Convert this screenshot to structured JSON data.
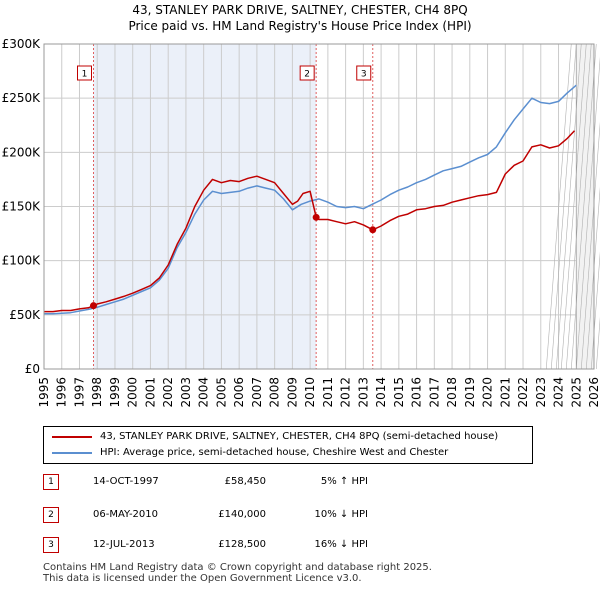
{
  "title_line1": "43, STANLEY PARK DRIVE, SALTNEY, CHESTER, CH4 8PQ",
  "title_line2": "Price paid vs. HM Land Registry's House Price Index (HPI)",
  "legend": {
    "property_label": "43, STANLEY PARK DRIVE, SALTNEY, CHESTER, CH4 8PQ (semi-detached house)",
    "hpi_label": "HPI: Average price, semi-detached house, Cheshire West and Chester"
  },
  "sales": [
    {
      "num": "1",
      "date": "14-OCT-1997",
      "price": "£58,450",
      "hpi": "5% ↑ HPI"
    },
    {
      "num": "2",
      "date": "06-MAY-2010",
      "price": "£140,000",
      "hpi": "10% ↓ HPI"
    },
    {
      "num": "3",
      "date": "12-JUL-2013",
      "price": "£128,500",
      "hpi": "16% ↓ HPI"
    }
  ],
  "footer": {
    "line1": "Contains HM Land Registry data © Crown copyright and database right 2025.",
    "line2": "This data is licensed under the Open Government Licence v3.0."
  },
  "colors": {
    "property": "#c00000",
    "hpi": "#5b8fd0",
    "shade": "#dde6f5",
    "grid": "#cccccc"
  },
  "chart_data": {
    "type": "line",
    "xlim": [
      1995,
      2026
    ],
    "ylim": [
      0,
      300000
    ],
    "x_ticks": [
      1995,
      1996,
      1997,
      1998,
      1999,
      2000,
      2001,
      2002,
      2003,
      2004,
      2005,
      2006,
      2007,
      2008,
      2009,
      2010,
      2011,
      2012,
      2013,
      2014,
      2015,
      2016,
      2017,
      2018,
      2019,
      2020,
      2021,
      2022,
      2023,
      2024,
      2025,
      2026
    ],
    "y_ticks": [
      0,
      50000,
      100000,
      150000,
      200000,
      250000,
      300000
    ],
    "y_tick_labels": [
      "£0",
      "£50K",
      "£100K",
      "£150K",
      "£200K",
      "£250K",
      "£300K"
    ],
    "grid": true,
    "future_hatch_from": 2025.0,
    "series": [
      {
        "name": "43, STANLEY PARK DRIVE, SALTNEY, CHESTER, CH4 8PQ (semi-detached house)",
        "color": "#c00000",
        "x": [
          1995.0,
          1995.5,
          1996.0,
          1996.5,
          1997.0,
          1997.5,
          1997.79,
          1998.0,
          1998.5,
          1999.0,
          1999.5,
          2000.0,
          2000.5,
          2001.0,
          2001.5,
          2002.0,
          2002.5,
          2003.0,
          2003.5,
          2004.0,
          2004.5,
          2005.0,
          2005.5,
          2006.0,
          2006.5,
          2007.0,
          2007.5,
          2008.0,
          2008.5,
          2009.0,
          2009.3,
          2009.6,
          2010.0,
          2010.34,
          2010.5,
          2011.0,
          2011.5,
          2012.0,
          2012.5,
          2013.0,
          2013.53,
          2014.0,
          2014.5,
          2015.0,
          2015.5,
          2016.0,
          2016.5,
          2017.0,
          2017.5,
          2018.0,
          2018.5,
          2019.0,
          2019.5,
          2020.0,
          2020.5,
          2021.0,
          2021.5,
          2022.0,
          2022.5,
          2023.0,
          2023.5,
          2024.0,
          2024.5,
          2024.9
        ],
        "y": [
          53000,
          53000,
          54000,
          54000,
          55500,
          56500,
          58450,
          60000,
          62000,
          64500,
          67000,
          70000,
          73500,
          77000,
          84000,
          96000,
          115000,
          130000,
          150000,
          165000,
          175000,
          172000,
          174000,
          173000,
          176000,
          178000,
          175000,
          172000,
          162000,
          152000,
          155000,
          162000,
          164000,
          140000,
          138000,
          138000,
          136000,
          134000,
          136000,
          133000,
          128500,
          132000,
          137000,
          141000,
          143000,
          147000,
          148000,
          150000,
          151000,
          154000,
          156000,
          158000,
          160000,
          161000,
          163000,
          180000,
          188000,
          192000,
          205000,
          207000,
          204000,
          206000,
          213000,
          220000
        ]
      },
      {
        "name": "HPI: Average price, semi-detached house, Cheshire West and Chester",
        "color": "#5b8fd0",
        "x": [
          1995.0,
          1995.5,
          1996.0,
          1996.5,
          1997.0,
          1997.5,
          1998.0,
          1998.5,
          1999.0,
          1999.5,
          2000.0,
          2000.5,
          2001.0,
          2001.5,
          2002.0,
          2002.5,
          2003.0,
          2003.5,
          2004.0,
          2004.5,
          2005.0,
          2005.5,
          2006.0,
          2006.5,
          2007.0,
          2007.5,
          2008.0,
          2008.5,
          2009.0,
          2009.5,
          2010.0,
          2010.5,
          2011.0,
          2011.5,
          2012.0,
          2012.5,
          2013.0,
          2013.5,
          2014.0,
          2014.5,
          2015.0,
          2015.5,
          2016.0,
          2016.5,
          2017.0,
          2017.5,
          2018.0,
          2018.5,
          2019.0,
          2019.5,
          2020.0,
          2020.5,
          2021.0,
          2021.5,
          2022.0,
          2022.5,
          2023.0,
          2023.5,
          2024.0,
          2024.5,
          2025.0
        ],
        "y": [
          51000,
          51000,
          51500,
          52000,
          53500,
          55000,
          57000,
          59500,
          62000,
          64500,
          68000,
          71500,
          75000,
          82000,
          93000,
          112000,
          126000,
          143000,
          156000,
          164000,
          162000,
          163000,
          164000,
          167000,
          169000,
          167000,
          165000,
          157000,
          147000,
          152000,
          155000,
          157000,
          154000,
          150000,
          149000,
          150000,
          148000,
          152000,
          156000,
          161000,
          165000,
          168000,
          172000,
          175000,
          179000,
          183000,
          185000,
          187000,
          191000,
          195000,
          198000,
          205000,
          218000,
          230000,
          240000,
          250000,
          246000,
          245000,
          247000,
          255000,
          262000
        ]
      }
    ],
    "sales": [
      {
        "label": "1",
        "x": 1997.79,
        "y": 58450
      },
      {
        "label": "2",
        "x": 2010.34,
        "y": 140000
      },
      {
        "label": "3",
        "x": 2013.53,
        "y": 128500
      }
    ]
  }
}
